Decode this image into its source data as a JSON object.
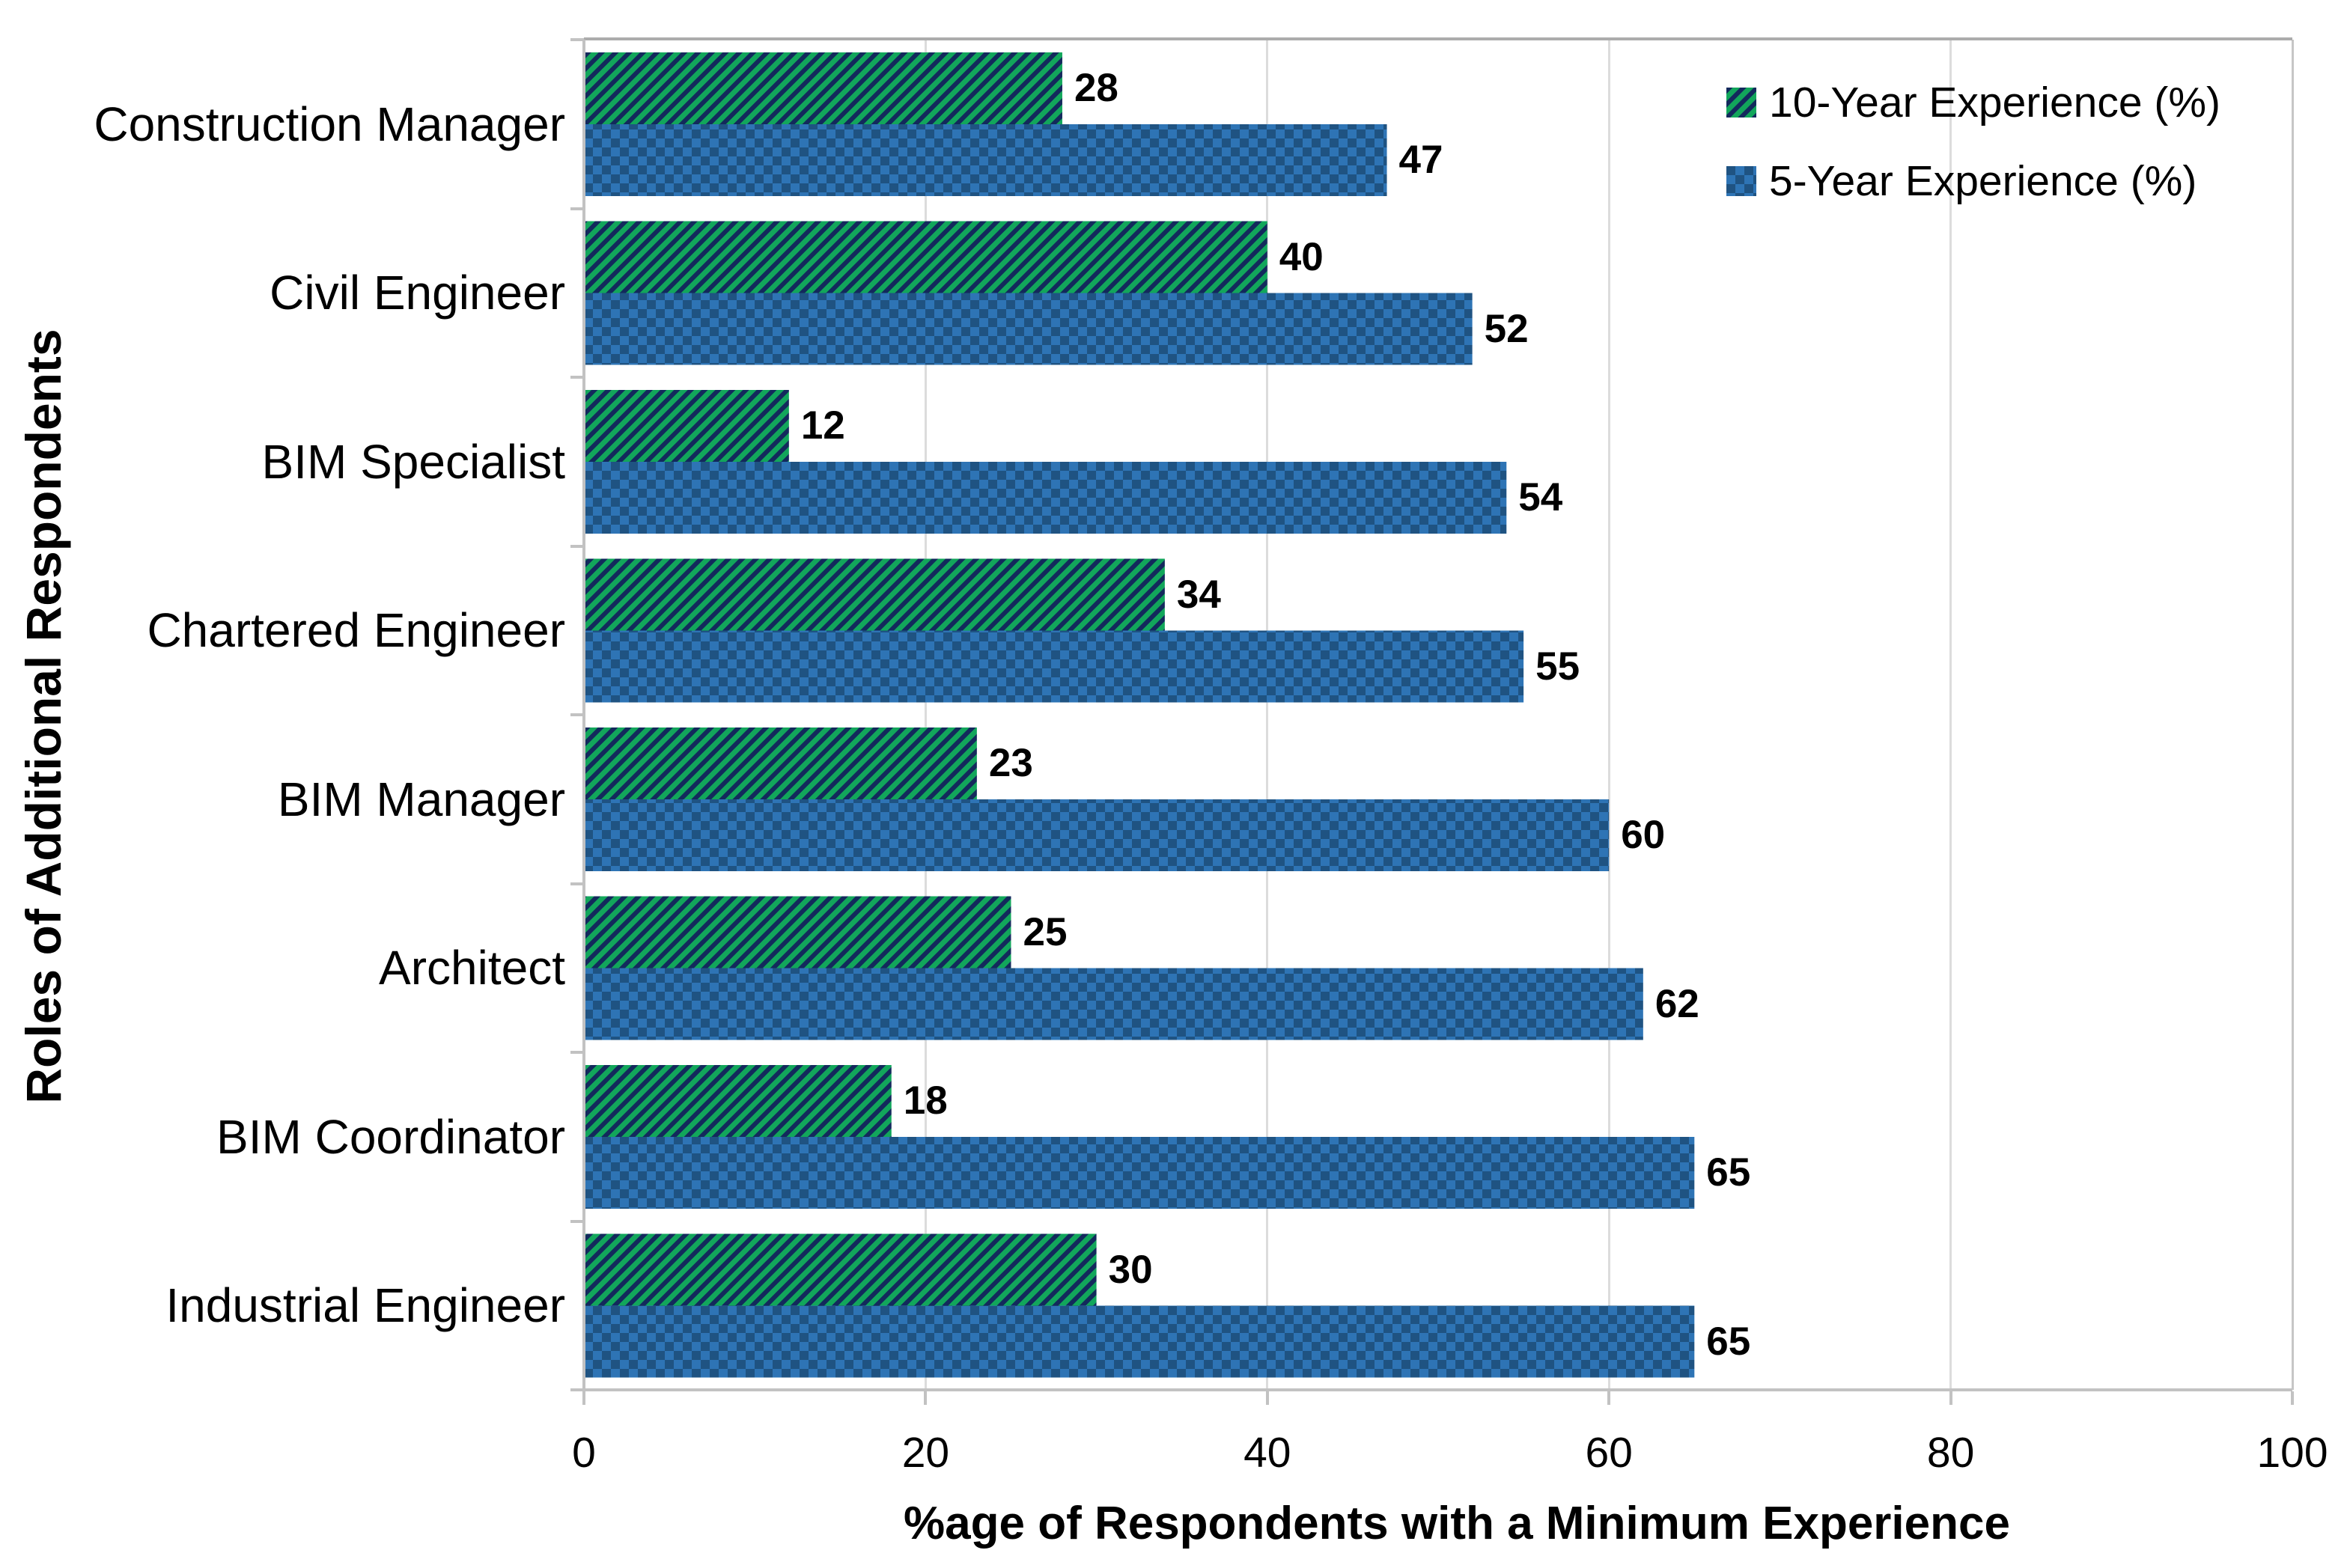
{
  "chart_data": {
    "type": "bar",
    "orientation": "horizontal",
    "title": "",
    "xlabel": "%age of Respondents with a Minimum Experience",
    "ylabel": "Roles of Additional Respondents",
    "xlim": [
      0,
      100
    ],
    "xticks": [
      0,
      20,
      40,
      60,
      80,
      100
    ],
    "grid": "vertical",
    "data_labels": true,
    "legend_position": "top-right-inside",
    "categories": [
      "Construction Manager",
      "Civil Engineer",
      "BIM Specialist",
      "Chartered Engineer",
      "BIM Manager",
      "Architect",
      "BIM Coordinator",
      "Industrial Engineer"
    ],
    "series": [
      {
        "name": "10-Year Experience (%)",
        "values": [
          28,
          40,
          12,
          34,
          23,
          25,
          18,
          30
        ],
        "pattern": "diagonal-hatch",
        "fill_color": "#12A65B",
        "pattern_color": "#13295C"
      },
      {
        "name": "5-Year Experience (%)",
        "values": [
          47,
          52,
          54,
          55,
          60,
          62,
          65,
          65
        ],
        "pattern": "checkerboard",
        "fill_color": "#2E74B5",
        "pattern_color": "#1F5382"
      }
    ]
  },
  "colors": {
    "gridline": "#DCDCDC",
    "axis_line": "#C2C2C2",
    "plot_top_border": "#ACACAC",
    "text": "#000000"
  }
}
